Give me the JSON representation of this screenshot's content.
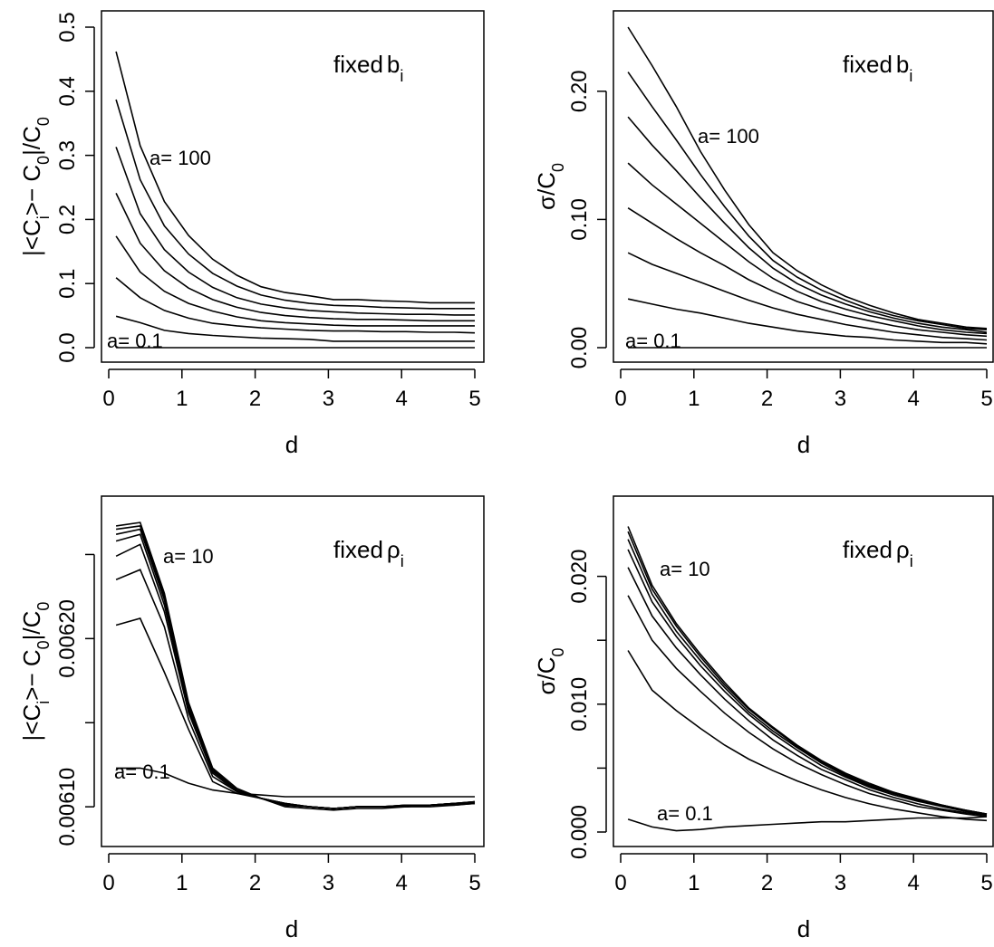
{
  "chart_data": [
    {
      "type": "line",
      "panel": "top-left",
      "xlabel": "d",
      "ylabel": {
        "prefix": "|<C",
        "sub1": "i",
        "mid": ">− C",
        "sub2": "0",
        "mid2": "|/C",
        "sub3": "0"
      },
      "label": {
        "text": "fixed",
        "symbol": "b",
        "sub": "i"
      },
      "xlim": [
        0,
        5
      ],
      "ylim": [
        0,
        0.5
      ],
      "xticks": [
        "0",
        "1",
        "2",
        "3",
        "4",
        "5"
      ],
      "yticks": [
        "0.0",
        "0.1",
        "0.2",
        "0.3",
        "0.4",
        "0.5"
      ],
      "annotations": [
        "a= 100",
        "a= 0.1"
      ],
      "x": [
        0.1,
        0.43,
        0.76,
        1.09,
        1.42,
        1.75,
        2.08,
        2.41,
        2.74,
        3.07,
        3.4,
        3.73,
        4.06,
        4.39,
        4.72,
        5.0
      ],
      "series": [
        {
          "values": [
            0.462,
            0.315,
            0.228,
            0.175,
            0.138,
            0.113,
            0.095,
            0.086,
            0.081,
            0.075,
            0.075,
            0.073,
            0.072,
            0.07,
            0.07,
            0.07
          ]
        },
        {
          "values": [
            0.387,
            0.262,
            0.19,
            0.146,
            0.116,
            0.096,
            0.082,
            0.074,
            0.069,
            0.066,
            0.065,
            0.063,
            0.062,
            0.061,
            0.061,
            0.061
          ]
        },
        {
          "values": [
            0.313,
            0.209,
            0.153,
            0.118,
            0.094,
            0.078,
            0.068,
            0.062,
            0.058,
            0.056,
            0.054,
            0.053,
            0.052,
            0.052,
            0.051,
            0.051
          ]
        },
        {
          "values": [
            0.241,
            0.163,
            0.12,
            0.093,
            0.075,
            0.063,
            0.055,
            0.05,
            0.047,
            0.045,
            0.044,
            0.044,
            0.043,
            0.042,
            0.042,
            0.042
          ]
        },
        {
          "values": [
            0.174,
            0.118,
            0.088,
            0.069,
            0.057,
            0.048,
            0.042,
            0.039,
            0.037,
            0.035,
            0.034,
            0.034,
            0.034,
            0.034,
            0.034,
            0.034
          ]
        },
        {
          "values": [
            0.109,
            0.078,
            0.058,
            0.046,
            0.038,
            0.034,
            0.031,
            0.029,
            0.027,
            0.026,
            0.026,
            0.025,
            0.025,
            0.024,
            0.024,
            0.023
          ]
        },
        {
          "values": [
            0.049,
            0.039,
            0.027,
            0.022,
            0.019,
            0.017,
            0.015,
            0.014,
            0.013,
            0.01,
            0.01,
            0.01,
            0.01,
            0.01,
            0.01,
            0.01
          ]
        },
        {
          "values": [
            0.0,
            0.0,
            0.0,
            0.0,
            0.0,
            0.0,
            0.0,
            0.0,
            0.0,
            0.0,
            0.0,
            0.0,
            0.0,
            0.0,
            0.0,
            0.0
          ]
        }
      ]
    },
    {
      "type": "line",
      "panel": "top-right",
      "xlabel": "d",
      "ylabel": {
        "prefix": "σ",
        "mid": "/C",
        "sub1": "0"
      },
      "label": {
        "text": "fixed",
        "symbol": "b",
        "sub": "i"
      },
      "xlim": [
        0,
        5
      ],
      "ylim": [
        0,
        0.25
      ],
      "xticks": [
        "0",
        "1",
        "2",
        "3",
        "4",
        "5"
      ],
      "yticks": [
        "0.00",
        "0.10",
        "0.20"
      ],
      "ytickvalues": [
        0,
        0.1,
        0.2
      ],
      "annotations": [
        "a= 100",
        "a= 0.1"
      ],
      "x": [
        0.1,
        0.43,
        0.76,
        1.09,
        1.42,
        1.75,
        2.08,
        2.41,
        2.74,
        3.07,
        3.4,
        3.73,
        4.06,
        4.39,
        4.72,
        5.0
      ],
      "series": [
        {
          "values": [
            0.25,
            0.22,
            0.188,
            0.153,
            0.123,
            0.096,
            0.074,
            0.06,
            0.049,
            0.04,
            0.033,
            0.027,
            0.022,
            0.019,
            0.016,
            0.015
          ]
        },
        {
          "values": [
            0.215,
            0.188,
            0.162,
            0.135,
            0.11,
            0.087,
            0.068,
            0.055,
            0.045,
            0.037,
            0.03,
            0.025,
            0.021,
            0.018,
            0.015,
            0.014
          ]
        },
        {
          "values": [
            0.18,
            0.158,
            0.138,
            0.117,
            0.097,
            0.078,
            0.062,
            0.05,
            0.041,
            0.034,
            0.028,
            0.023,
            0.019,
            0.016,
            0.014,
            0.012
          ]
        },
        {
          "values": [
            0.144,
            0.127,
            0.112,
            0.097,
            0.082,
            0.067,
            0.054,
            0.044,
            0.036,
            0.03,
            0.025,
            0.021,
            0.017,
            0.014,
            0.012,
            0.011
          ]
        },
        {
          "values": [
            0.109,
            0.097,
            0.085,
            0.074,
            0.064,
            0.053,
            0.044,
            0.036,
            0.03,
            0.025,
            0.021,
            0.017,
            0.014,
            0.012,
            0.01,
            0.009
          ]
        },
        {
          "values": [
            0.074,
            0.065,
            0.058,
            0.051,
            0.044,
            0.037,
            0.031,
            0.026,
            0.022,
            0.018,
            0.015,
            0.012,
            0.01,
            0.008,
            0.007,
            0.006
          ]
        },
        {
          "values": [
            0.038,
            0.034,
            0.03,
            0.027,
            0.023,
            0.019,
            0.016,
            0.013,
            0.011,
            0.009,
            0.008,
            0.006,
            0.005,
            0.004,
            0.004,
            0.003
          ]
        },
        {
          "values": [
            0.0,
            0.0,
            0.0,
            0.0,
            0.0,
            0.0,
            0.0,
            0.0,
            0.0,
            0.0,
            0.0,
            0.0,
            0.0,
            0.0,
            0.0,
            0.0
          ]
        }
      ]
    },
    {
      "type": "line",
      "panel": "bottom-left",
      "xlabel": "d",
      "ylabel": {
        "prefix": "|<C",
        "sub1": "i",
        "mid": ">− C",
        "sub2": "0",
        "mid2": "|/C",
        "sub3": "0"
      },
      "label": {
        "text": "fixed",
        "symbol": "ρ",
        "sub": "i"
      },
      "xlim": [
        0,
        5
      ],
      "ylim": [
        0.006085,
        0.006275
      ],
      "xticks": [
        "0",
        "1",
        "2",
        "3",
        "4",
        "5"
      ],
      "yticks": [
        "0.00610",
        "",
        "0.00620",
        ""
      ],
      "ytickvalues": [
        0.0061,
        0.00615,
        0.0062,
        0.00625
      ],
      "annotations": [
        "a= 10",
        "a= 0.1"
      ],
      "x": [
        0.1,
        0.43,
        0.76,
        1.09,
        1.42,
        1.75,
        2.08,
        2.41,
        2.74,
        3.07,
        3.4,
        3.73,
        4.06,
        4.39,
        4.72,
        5.0
      ],
      "series": [
        {
          "values": [
            0.006267,
            0.006269,
            0.006227,
            0.006162,
            0.006123,
            0.006111,
            0.006105,
            0.006102,
            0.0061,
            0.006099,
            0.0061,
            0.0061,
            0.006101,
            0.006101,
            0.006102,
            0.006103
          ]
        },
        {
          "values": [
            0.006265,
            0.006267,
            0.006225,
            0.006161,
            0.006122,
            0.00611,
            0.006105,
            0.006102,
            0.0061,
            0.006099,
            0.0061,
            0.0061,
            0.006101,
            0.006101,
            0.006102,
            0.006103
          ]
        },
        {
          "values": [
            0.006262,
            0.006265,
            0.006223,
            0.00616,
            0.006122,
            0.00611,
            0.006105,
            0.006102,
            0.0061,
            0.006099,
            0.0061,
            0.0061,
            0.006101,
            0.006101,
            0.006102,
            0.006103
          ]
        },
        {
          "values": [
            0.006258,
            0.006262,
            0.00622,
            0.006158,
            0.006121,
            0.00611,
            0.006105,
            0.006101,
            0.0061,
            0.006099,
            0.0061,
            0.0061,
            0.0061,
            0.006101,
            0.006102,
            0.006102
          ]
        },
        {
          "values": [
            0.006249,
            0.006256,
            0.006216,
            0.006156,
            0.00612,
            0.006109,
            0.006105,
            0.006101,
            0.0061,
            0.006099,
            0.0061,
            0.0061,
            0.0061,
            0.006101,
            0.006102,
            0.006102
          ]
        },
        {
          "values": [
            0.006235,
            0.006241,
            0.006207,
            0.006152,
            0.006118,
            0.006109,
            0.006105,
            0.006101,
            0.0061,
            0.006099,
            0.0061,
            0.0061,
            0.0061,
            0.006101,
            0.006101,
            0.006102
          ]
        },
        {
          "values": [
            0.006208,
            0.006212,
            0.00618,
            0.006146,
            0.006115,
            0.006108,
            0.006105,
            0.0061,
            0.006099,
            0.006098,
            0.006099,
            0.006099,
            0.0061,
            0.0061,
            0.006101,
            0.006102
          ]
        },
        {
          "values": [
            0.006123,
            0.006123,
            0.00612,
            0.006114,
            0.00611,
            0.006108,
            0.006107,
            0.006106,
            0.006106,
            0.006106,
            0.006106,
            0.006106,
            0.006106,
            0.006106,
            0.006106,
            0.006106
          ]
        }
      ]
    },
    {
      "type": "line",
      "panel": "bottom-right",
      "xlabel": "d",
      "ylabel": {
        "prefix": "σ",
        "mid": "/C",
        "sub1": "0"
      },
      "label": {
        "text": "fixed",
        "symbol": "ρ",
        "sub": "i"
      },
      "xlim": [
        0,
        5
      ],
      "ylim": [
        0,
        0.025
      ],
      "xticks": [
        "0",
        "1",
        "2",
        "3",
        "4",
        "5"
      ],
      "yticks": [
        "0.000",
        "",
        "0.010",
        "",
        "0.020"
      ],
      "ytickvalues": [
        0,
        0.005,
        0.01,
        0.015,
        0.02
      ],
      "annotations": [
        "a= 10",
        "a= 0.1"
      ],
      "x": [
        0.1,
        0.43,
        0.76,
        1.09,
        1.42,
        1.75,
        2.08,
        2.41,
        2.74,
        3.07,
        3.4,
        3.73,
        4.06,
        4.39,
        4.72,
        5.0
      ],
      "series": [
        {
          "values": [
            0.0239,
            0.0193,
            0.0163,
            0.0139,
            0.0117,
            0.0097,
            0.0082,
            0.0068,
            0.0056,
            0.0046,
            0.0038,
            0.0031,
            0.0026,
            0.0021,
            0.0017,
            0.0014
          ]
        },
        {
          "values": [
            0.0235,
            0.019,
            0.0161,
            0.0137,
            0.0115,
            0.0096,
            0.0081,
            0.0067,
            0.0055,
            0.0045,
            0.0037,
            0.0031,
            0.0025,
            0.0021,
            0.0017,
            0.0014
          ]
        },
        {
          "values": [
            0.0229,
            0.0186,
            0.0157,
            0.0134,
            0.0113,
            0.0094,
            0.0079,
            0.0066,
            0.0054,
            0.0044,
            0.0036,
            0.003,
            0.0025,
            0.002,
            0.0017,
            0.0014
          ]
        },
        {
          "values": [
            0.0221,
            0.018,
            0.0153,
            0.013,
            0.011,
            0.0092,
            0.0077,
            0.0064,
            0.0052,
            0.0043,
            0.0035,
            0.0029,
            0.0024,
            0.002,
            0.0016,
            0.0013
          ]
        },
        {
          "values": [
            0.0207,
            0.0169,
            0.0144,
            0.0123,
            0.0104,
            0.0087,
            0.0072,
            0.006,
            0.0049,
            0.0041,
            0.0033,
            0.0027,
            0.0022,
            0.0018,
            0.0015,
            0.0013
          ]
        },
        {
          "values": [
            0.0185,
            0.015,
            0.0128,
            0.011,
            0.0093,
            0.0078,
            0.0065,
            0.0054,
            0.0045,
            0.0037,
            0.003,
            0.0025,
            0.002,
            0.0017,
            0.0014,
            0.0012
          ]
        },
        {
          "values": [
            0.0142,
            0.0111,
            0.0095,
            0.0081,
            0.0068,
            0.0057,
            0.0048,
            0.004,
            0.0033,
            0.0027,
            0.0022,
            0.0018,
            0.0015,
            0.0012,
            0.001,
            0.0009
          ]
        },
        {
          "values": [
            0.001,
            0.0004,
            0.0001,
            0.0002,
            0.0004,
            0.0005,
            0.0006,
            0.0007,
            0.0008,
            0.0008,
            0.0009,
            0.001,
            0.0011,
            0.0011,
            0.0011,
            0.0012
          ]
        }
      ]
    }
  ]
}
